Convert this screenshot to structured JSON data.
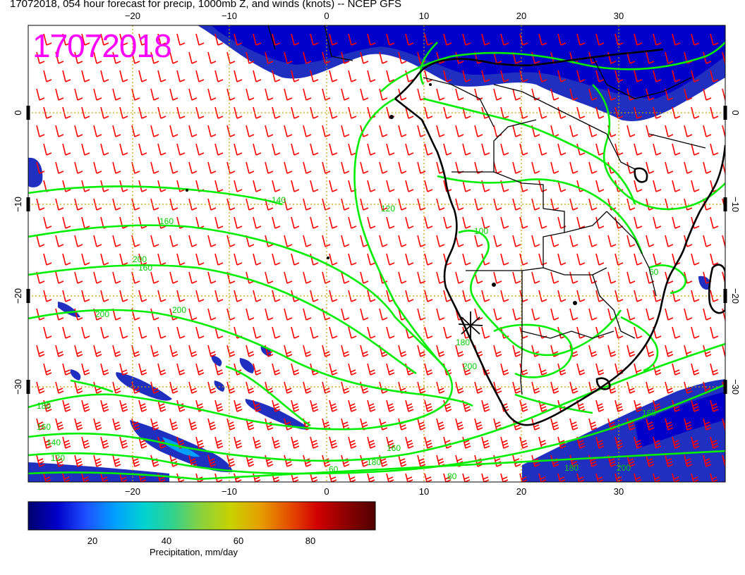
{
  "title": "17072018, 054 hour forecast for precip, 1000mb Z, and winds (knots) -- NCEP GFS",
  "stamp": "17072018",
  "colors": {
    "contour": "#00ee00",
    "barb": "#ff0000",
    "grid": "#c8a000",
    "land_outline": "#000000",
    "precip_heavy": "#1f2fbf",
    "stamp": "#ff00ff"
  },
  "map": {
    "lon_range": [
      -30,
      42
    ],
    "lat_range": [
      -40,
      10
    ],
    "lon_ticks": [
      "−20",
      "−10",
      "0",
      "10",
      "20",
      "30"
    ],
    "lat_ticks": [
      "0",
      "−10",
      "−20",
      "−30"
    ]
  },
  "contours": {
    "labels": [
      "140",
      "160",
      "160",
      "200",
      "200",
      "200",
      "180",
      "160",
      "140",
      "120",
      "120",
      "100",
      "180",
      "200",
      "180",
      "160",
      "60",
      "80",
      "180",
      "200",
      "160",
      "60"
    ]
  },
  "colorbar": {
    "label": "Precipitation, mm/day",
    "ticks": [
      "20",
      "40",
      "60",
      "80"
    ],
    "range": [
      0,
      100
    ],
    "colors": [
      "#00006e",
      "#0000c8",
      "#1e50ff",
      "#00a0ff",
      "#00d2d2",
      "#32d28c",
      "#8cd23c",
      "#c8d200",
      "#e6a000",
      "#e65000",
      "#d20000",
      "#8c0000",
      "#500000"
    ]
  }
}
